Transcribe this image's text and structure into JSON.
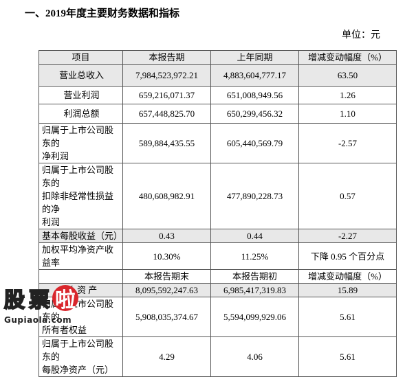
{
  "heading": "一、2019年度主要财务数据和指标",
  "unit": "单位：元",
  "table": {
    "header1": [
      "项目",
      "本报告期",
      "上年同期",
      "增减变动幅度（%）"
    ],
    "rows1": [
      [
        "营业总收入",
        "7,984,523,972.21",
        "4,883,604,777.17",
        "63.50"
      ],
      [
        "营业利润",
        "659,216,071.37",
        "651,008,949.56",
        "1.26"
      ],
      [
        "利润总额",
        "657,448,825.70",
        "650,299,456.32",
        "1.10"
      ],
      [
        "归属于上市公司股东的\n净利润",
        "589,884,435.55",
        "605,440,569.79",
        "-2.57"
      ],
      [
        "归属于上市公司股东的\n扣除非经常性损益的净\n利润",
        "480,608,982.91",
        "477,890,228.73",
        "0.57"
      ],
      [
        "基本每股收益（元）",
        "0.43",
        "0.44",
        "-2.27"
      ],
      [
        "加权平均净资产收益率",
        "10.30%",
        "11.25%",
        "下降 0.95 个百分点"
      ]
    ],
    "header2": [
      "",
      "本报告期末",
      "本报告期初",
      "增减变动幅度（%）"
    ],
    "rows2": [
      [
        "总 资 产",
        "8,095,592,247.63",
        "6,985,417,319.83",
        "15.89"
      ],
      [
        "归属于上市公司股东的\n所有者权益",
        "5,908,035,374.67",
        "5,594,099,929.06",
        "5.61"
      ],
      [
        "归属于上市公司股东的\n每股净资产（元）",
        "4.29",
        "4.06",
        "5.61"
      ]
    ]
  },
  "watermark": {
    "chars": [
      "股",
      "票",
      "啦"
    ],
    "url": "Gupiaola.com"
  }
}
